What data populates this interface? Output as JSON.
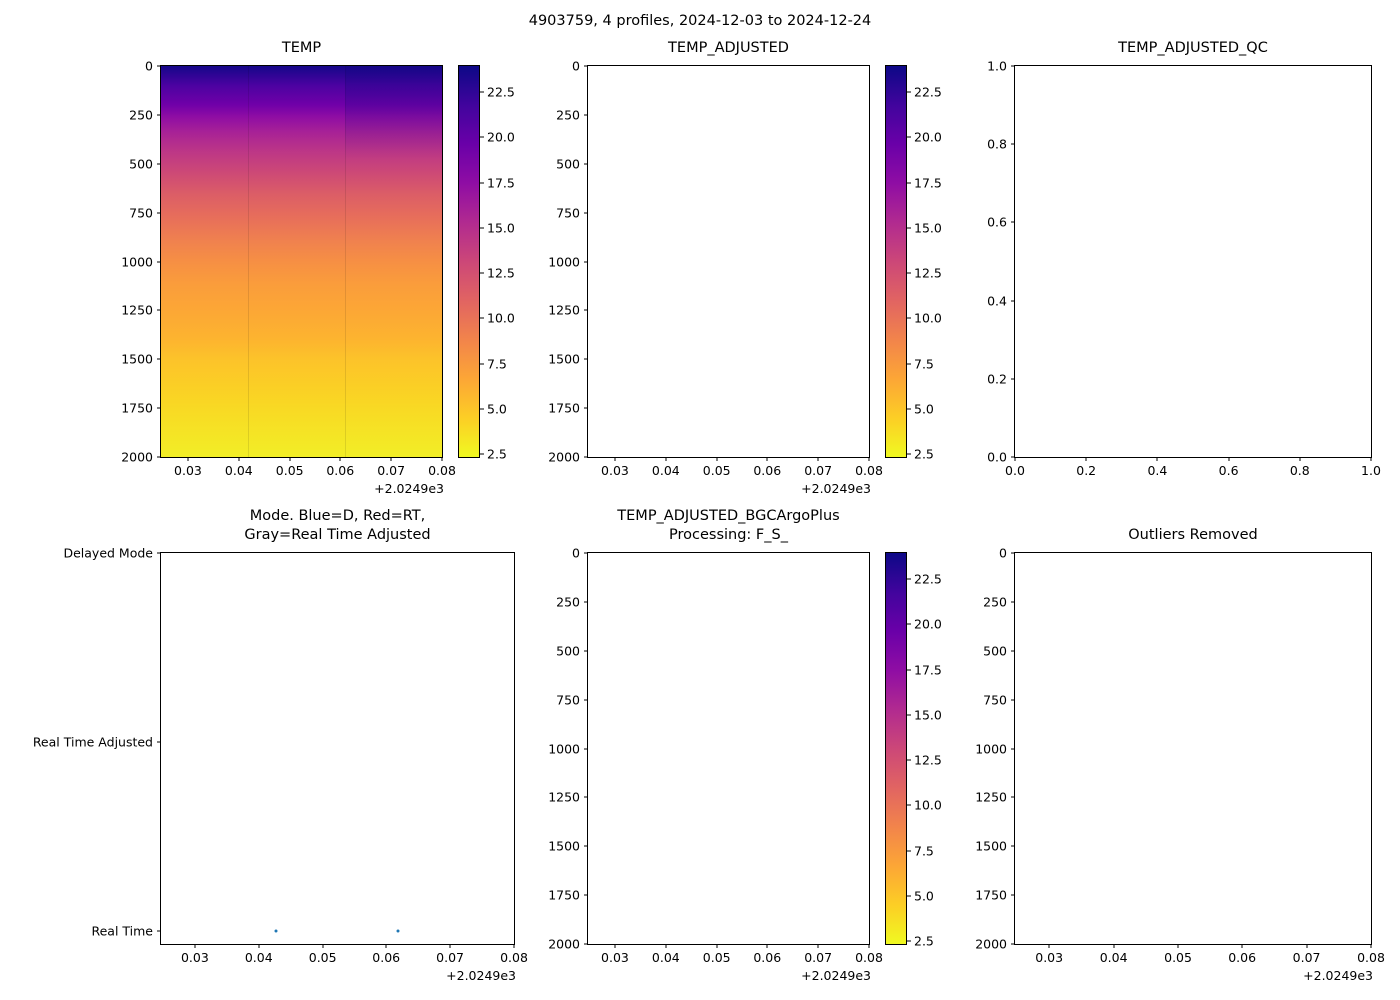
{
  "figure": {
    "title": "4903759, 4 profiles, 2024-12-03 to 2024-12-24",
    "background": "#ffffff",
    "text_color": "#000000"
  },
  "palette": {
    "colorbar_gradient": [
      [
        "0%",
        "#0d0887"
      ],
      [
        "10%",
        "#41049d"
      ],
      [
        "20%",
        "#6a00a8"
      ],
      [
        "30%",
        "#8f0da4"
      ],
      [
        "40%",
        "#b12a90"
      ],
      [
        "50%",
        "#cc4778"
      ],
      [
        "60%",
        "#e16462"
      ],
      [
        "70%",
        "#f2844b"
      ],
      [
        "80%",
        "#fca636"
      ],
      [
        "90%",
        "#fcce25"
      ],
      [
        "100%",
        "#f0f921"
      ]
    ],
    "heatmap_gradient": [
      [
        "0%",
        "#150789"
      ],
      [
        "5%",
        "#4c02a1"
      ],
      [
        "10%",
        "#7100a8"
      ],
      [
        "13%",
        "#8f0da4"
      ],
      [
        "17%",
        "#a82296"
      ],
      [
        "22%",
        "#bd3786"
      ],
      [
        "27%",
        "#cc4877"
      ],
      [
        "33%",
        "#dc5e66"
      ],
      [
        "38%",
        "#e66c5c"
      ],
      [
        "45%",
        "#f0824e"
      ],
      [
        "50%",
        "#f68f44"
      ],
      [
        "56%",
        "#fa9d3b"
      ],
      [
        "62%",
        "#fca636"
      ],
      [
        "70%",
        "#fdb42f"
      ],
      [
        "75%",
        "#fcc32a"
      ],
      [
        "82%",
        "#fbcf25"
      ],
      [
        "88%",
        "#f8da24"
      ],
      [
        "94%",
        "#f5e425"
      ],
      [
        "100%",
        "#f2ee26"
      ]
    ],
    "dot_color": "#1f77b4",
    "seam_color": "rgba(0,0,0,0.10)"
  },
  "chart_data": [
    {
      "id": "temp",
      "type": "heatmap",
      "title": "TEMP",
      "x_offset_label": "+2.0249e3",
      "xlim_offset": [
        0.0247,
        0.08
      ],
      "ylim_depth": [
        2000,
        0
      ],
      "x_ticks": [
        {
          "label": "0.03",
          "f": 0.096
        },
        {
          "label": "0.04",
          "f": 0.277
        },
        {
          "label": "0.05",
          "f": 0.458
        },
        {
          "label": "0.06",
          "f": 0.638
        },
        {
          "label": "0.07",
          "f": 0.819
        },
        {
          "label": "0.08",
          "f": 1.0
        }
      ],
      "y_ticks": [
        {
          "label": "0",
          "f": 0.0
        },
        {
          "label": "250",
          "f": 0.125
        },
        {
          "label": "500",
          "f": 0.25
        },
        {
          "label": "750",
          "f": 0.375
        },
        {
          "label": "1000",
          "f": 0.5
        },
        {
          "label": "1250",
          "f": 0.625
        },
        {
          "label": "1500",
          "f": 0.75
        },
        {
          "label": "1750",
          "f": 0.875
        },
        {
          "label": "2000",
          "f": 1.0
        }
      ],
      "colorbar": {
        "vmin": 2.3,
        "vmax": 24.0,
        "ticks": [
          {
            "label": "22.5",
            "f": 0.069
          },
          {
            "label": "20.0",
            "f": 0.184
          },
          {
            "label": "17.5",
            "f": 0.3
          },
          {
            "label": "15.0",
            "f": 0.415
          },
          {
            "label": "12.5",
            "f": 0.53
          },
          {
            "label": "10.0",
            "f": 0.645
          },
          {
            "label": "7.5",
            "f": 0.76
          },
          {
            "label": "5.0",
            "f": 0.876
          },
          {
            "label": "2.5",
            "f": 0.991
          }
        ]
      },
      "heatmap": {
        "n_profiles": 4,
        "column_seams": [
          0.31,
          0.655
        ],
        "depths_m": [
          0,
          100,
          250,
          500,
          750,
          1000,
          1250,
          1500,
          1750,
          2000
        ],
        "mean_temp_c": [
          23.5,
          21.0,
          17.5,
          12.8,
          10.2,
          7.8,
          6.0,
          4.6,
          3.4,
          2.6
        ]
      }
    },
    {
      "id": "temp_adjusted",
      "type": "heatmap",
      "title": "TEMP_ADJUSTED",
      "empty": true,
      "x_offset_label": "+2.0249e3",
      "xlim_offset": [
        0.0247,
        0.08
      ],
      "ylim_depth": [
        2000,
        0
      ],
      "x_ticks": [
        {
          "label": "0.03",
          "f": 0.096
        },
        {
          "label": "0.04",
          "f": 0.277
        },
        {
          "label": "0.05",
          "f": 0.458
        },
        {
          "label": "0.06",
          "f": 0.638
        },
        {
          "label": "0.07",
          "f": 0.819
        },
        {
          "label": "0.08",
          "f": 1.0
        }
      ],
      "y_ticks": [
        {
          "label": "0",
          "f": 0.0
        },
        {
          "label": "250",
          "f": 0.125
        },
        {
          "label": "500",
          "f": 0.25
        },
        {
          "label": "750",
          "f": 0.375
        },
        {
          "label": "1000",
          "f": 0.5
        },
        {
          "label": "1250",
          "f": 0.625
        },
        {
          "label": "1500",
          "f": 0.75
        },
        {
          "label": "1750",
          "f": 0.875
        },
        {
          "label": "2000",
          "f": 1.0
        }
      ],
      "colorbar": {
        "vmin": 2.3,
        "vmax": 24.0,
        "ticks": [
          {
            "label": "22.5",
            "f": 0.069
          },
          {
            "label": "20.0",
            "f": 0.184
          },
          {
            "label": "17.5",
            "f": 0.3
          },
          {
            "label": "15.0",
            "f": 0.415
          },
          {
            "label": "12.5",
            "f": 0.53
          },
          {
            "label": "10.0",
            "f": 0.645
          },
          {
            "label": "7.5",
            "f": 0.76
          },
          {
            "label": "5.0",
            "f": 0.876
          },
          {
            "label": "2.5",
            "f": 0.991
          }
        ]
      }
    },
    {
      "id": "temp_adjusted_qc",
      "type": "scatter",
      "title": "TEMP_ADJUSTED_QC",
      "empty": true,
      "x_ticks": [
        {
          "label": "0.0",
          "f": 0.0
        },
        {
          "label": "0.2",
          "f": 0.2
        },
        {
          "label": "0.4",
          "f": 0.4
        },
        {
          "label": "0.6",
          "f": 0.6
        },
        {
          "label": "0.8",
          "f": 0.8
        },
        {
          "label": "1.0",
          "f": 1.0
        }
      ],
      "y_ticks": [
        {
          "label": "1.0",
          "f": 0.0
        },
        {
          "label": "0.8",
          "f": 0.2
        },
        {
          "label": "0.6",
          "f": 0.4
        },
        {
          "label": "0.4",
          "f": 0.6
        },
        {
          "label": "0.2",
          "f": 0.8
        },
        {
          "label": "0.0",
          "f": 1.0
        }
      ]
    },
    {
      "id": "mode",
      "type": "scatter",
      "title": "Mode. Blue=D, Red=RT,\nGray=Real Time Adjusted",
      "x_offset_label": "+2.0249e3",
      "xlim_offset": [
        0.0247,
        0.08
      ],
      "x_ticks": [
        {
          "label": "0.03",
          "f": 0.096
        },
        {
          "label": "0.04",
          "f": 0.277
        },
        {
          "label": "0.05",
          "f": 0.458
        },
        {
          "label": "0.06",
          "f": 0.638
        },
        {
          "label": "0.07",
          "f": 0.819
        },
        {
          "label": "0.08",
          "f": 1.0
        }
      ],
      "y_ticks": [
        {
          "label": "Delayed Mode",
          "f": 0.0
        },
        {
          "label": "Real Time Adjusted",
          "f": 0.484
        },
        {
          "label": "Real Time",
          "f": 0.968
        }
      ],
      "dots": [
        {
          "fx": 0.326,
          "fy": 0.968,
          "x_offset_value": 0.042,
          "mode": "Real Time"
        },
        {
          "fx": 0.671,
          "fy": 0.968,
          "x_offset_value": 0.061,
          "mode": "Real Time"
        }
      ]
    },
    {
      "id": "bgc",
      "type": "heatmap",
      "title": "TEMP_ADJUSTED_BGCArgoPlus\nProcessing: F_S_",
      "empty": true,
      "x_offset_label": "+2.0249e3",
      "xlim_offset": [
        0.0247,
        0.08
      ],
      "ylim_depth": [
        2000,
        0
      ],
      "x_ticks": [
        {
          "label": "0.03",
          "f": 0.096
        },
        {
          "label": "0.04",
          "f": 0.277
        },
        {
          "label": "0.05",
          "f": 0.458
        },
        {
          "label": "0.06",
          "f": 0.638
        },
        {
          "label": "0.07",
          "f": 0.819
        },
        {
          "label": "0.08",
          "f": 1.0
        }
      ],
      "y_ticks": [
        {
          "label": "0",
          "f": 0.0
        },
        {
          "label": "250",
          "f": 0.125
        },
        {
          "label": "500",
          "f": 0.25
        },
        {
          "label": "750",
          "f": 0.375
        },
        {
          "label": "1000",
          "f": 0.5
        },
        {
          "label": "1250",
          "f": 0.625
        },
        {
          "label": "1500",
          "f": 0.75
        },
        {
          "label": "1750",
          "f": 0.875
        },
        {
          "label": "2000",
          "f": 1.0
        }
      ],
      "colorbar": {
        "vmin": 2.3,
        "vmax": 24.0,
        "ticks": [
          {
            "label": "22.5",
            "f": 0.069
          },
          {
            "label": "20.0",
            "f": 0.184
          },
          {
            "label": "17.5",
            "f": 0.3
          },
          {
            "label": "15.0",
            "f": 0.415
          },
          {
            "label": "12.5",
            "f": 0.53
          },
          {
            "label": "10.0",
            "f": 0.645
          },
          {
            "label": "7.5",
            "f": 0.76
          },
          {
            "label": "5.0",
            "f": 0.876
          },
          {
            "label": "2.5",
            "f": 0.991
          }
        ]
      }
    },
    {
      "id": "outliers",
      "type": "scatter",
      "title": "Outliers Removed",
      "empty": true,
      "x_offset_label": "+2.0249e3",
      "xlim_offset": [
        0.0247,
        0.08
      ],
      "ylim_depth": [
        2000,
        0
      ],
      "x_ticks": [
        {
          "label": "0.03",
          "f": 0.096
        },
        {
          "label": "0.04",
          "f": 0.277
        },
        {
          "label": "0.05",
          "f": 0.458
        },
        {
          "label": "0.06",
          "f": 0.638
        },
        {
          "label": "0.07",
          "f": 0.819
        },
        {
          "label": "0.08",
          "f": 1.0
        }
      ],
      "y_ticks": [
        {
          "label": "0",
          "f": 0.0
        },
        {
          "label": "250",
          "f": 0.125
        },
        {
          "label": "500",
          "f": 0.25
        },
        {
          "label": "750",
          "f": 0.375
        },
        {
          "label": "1000",
          "f": 0.5
        },
        {
          "label": "1250",
          "f": 0.625
        },
        {
          "label": "1500",
          "f": 0.75
        },
        {
          "label": "1750",
          "f": 0.875
        },
        {
          "label": "2000",
          "f": 1.0
        }
      ]
    }
  ]
}
